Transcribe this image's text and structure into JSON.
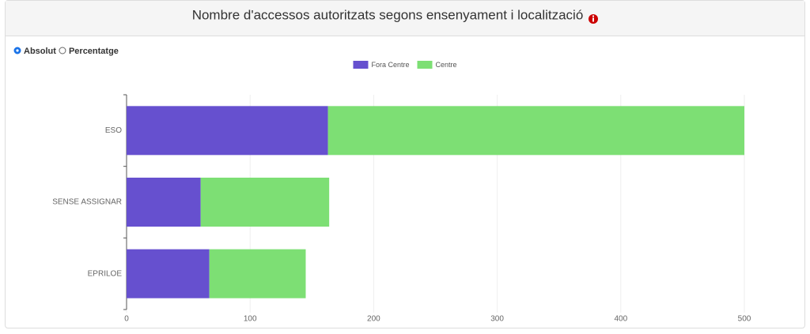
{
  "controls": {
    "options": [
      "Absolut",
      "Percentatge"
    ],
    "selected": 0
  },
  "chart_data": {
    "type": "stacked-bar-horizontal",
    "title": "Nombre d'accessos autoritzats segons ensenyament i localització",
    "categories": [
      "ESO",
      "SENSE ASSIGNAR",
      "EPRILOE"
    ],
    "series": [
      {
        "name": "Fora Centre",
        "color": "#6650cf",
        "values": [
          163,
          60,
          67
        ]
      },
      {
        "name": "Centre",
        "color": "#7ddf74",
        "values": [
          337,
          104,
          78
        ]
      }
    ],
    "xlim": [
      0,
      500
    ],
    "xticks": [
      0,
      100,
      200,
      300,
      400,
      500
    ],
    "grid": true,
    "legend": "top"
  }
}
